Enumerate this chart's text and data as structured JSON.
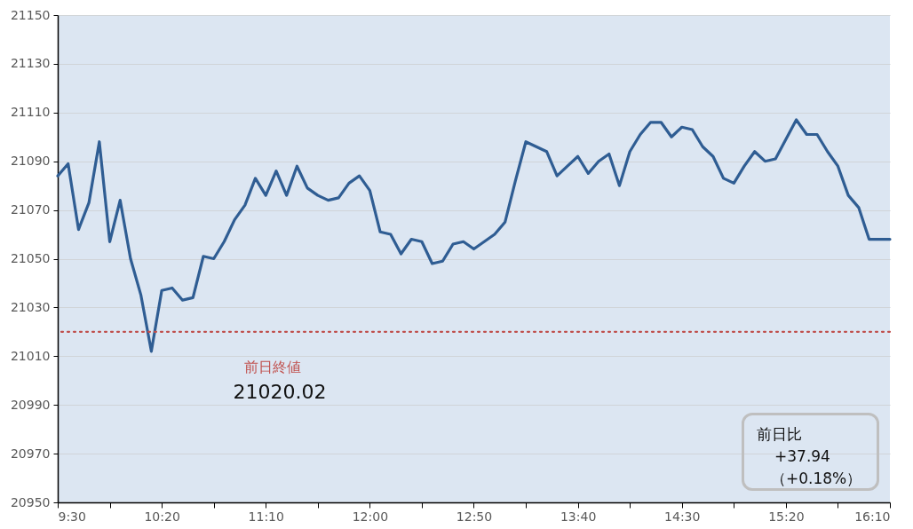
{
  "chart_data": {
    "type": "line",
    "x": [
      9.5,
      9.5833,
      9.6667,
      9.75,
      9.8333,
      9.9167,
      10,
      10.0833,
      10.1667,
      10.25,
      10.3333,
      10.4167,
      10.5,
      10.5833,
      10.6667,
      10.75,
      10.8333,
      10.9167,
      11,
      11.0833,
      11.1667,
      11.25,
      11.3333,
      11.4167,
      11.5,
      11.5833,
      11.6667,
      11.75,
      11.8333,
      11.9167,
      12,
      12.0833,
      12.1667,
      12.25,
      12.3333,
      12.4167,
      12.5,
      12.5833,
      12.6667,
      12.75,
      12.8333,
      12.9167,
      13,
      13.0833,
      13.1667,
      13.25,
      13.3333,
      13.4167,
      13.5,
      13.5833,
      13.6667,
      13.75,
      13.8333,
      13.9167,
      14,
      14.0833,
      14.1667,
      14.25,
      14.3333,
      14.4167,
      14.5,
      14.5833,
      14.6667,
      14.75,
      14.8333,
      14.9167,
      15,
      15.0833,
      15.1667,
      15.25,
      15.3333,
      15.4167,
      15.5,
      15.5833,
      15.6667,
      15.75,
      15.8333,
      15.9167,
      16,
      16.0833,
      16.1667
    ],
    "series": [
      {
        "color": "#2f5d93",
        "values": [
          21084,
          21089,
          21062,
          21073,
          21098,
          21057,
          21074,
          21050,
          21035,
          21012,
          21037,
          21038,
          21033,
          21034,
          21051,
          21050,
          21057,
          21066,
          21072,
          21083,
          21076,
          21086,
          21076,
          21088,
          21079,
          21076,
          21074,
          21075,
          21081,
          21084,
          21078,
          21061,
          21060,
          21052,
          21058,
          21057,
          21048,
          21049,
          21056,
          21057,
          21054,
          21057,
          21060,
          21065,
          21082,
          21098,
          21096,
          21094,
          21084,
          21088,
          21092,
          21085,
          21090,
          21093,
          21080,
          21094,
          21101,
          21106,
          21106,
          21100,
          21104,
          21103,
          21096,
          21092,
          21083,
          21081,
          21088,
          21094,
          21090,
          21091,
          21099,
          21107,
          21101,
          21101,
          21094,
          21088,
          21076,
          21071,
          21058,
          21058,
          21058
        ]
      }
    ],
    "xlim": [
      9.5,
      16.1667
    ],
    "xticks": [
      {
        "value": 9.5,
        "label": "9:30"
      },
      {
        "value": 9.9167,
        "label": null
      },
      {
        "value": 10.3333,
        "label": "10:20"
      },
      {
        "value": 10.75,
        "label": null
      },
      {
        "value": 11.1667,
        "label": "11:10"
      },
      {
        "value": 11.5833,
        "label": null
      },
      {
        "value": 12,
        "label": "12:00"
      },
      {
        "value": 12.4167,
        "label": null
      },
      {
        "value": 12.8333,
        "label": "12:50"
      },
      {
        "value": 13.25,
        "label": null
      },
      {
        "value": 13.6667,
        "label": "13:40"
      },
      {
        "value": 14.0833,
        "label": null
      },
      {
        "value": 14.5,
        "label": "14:30"
      },
      {
        "value": 14.9167,
        "label": null
      },
      {
        "value": 15.3333,
        "label": "15:20"
      },
      {
        "value": 15.75,
        "label": null
      },
      {
        "value": 16.1667,
        "label": "16:10"
      }
    ],
    "ylim": [
      20950,
      21150
    ],
    "yticks": [
      20950,
      20970,
      20990,
      21010,
      21030,
      21050,
      21070,
      21090,
      21110,
      21130,
      21150
    ],
    "grid": "y",
    "ref_lines": [
      {
        "axis": "y",
        "value": 21020.02,
        "label": "前日終値",
        "color": "#c0504d",
        "line_style": "dotted"
      }
    ],
    "annotations": [
      {
        "text": "21020.02",
        "y": 21020.02
      },
      "前日比",
      "+37.94",
      "（+0.18%）"
    ]
  }
}
